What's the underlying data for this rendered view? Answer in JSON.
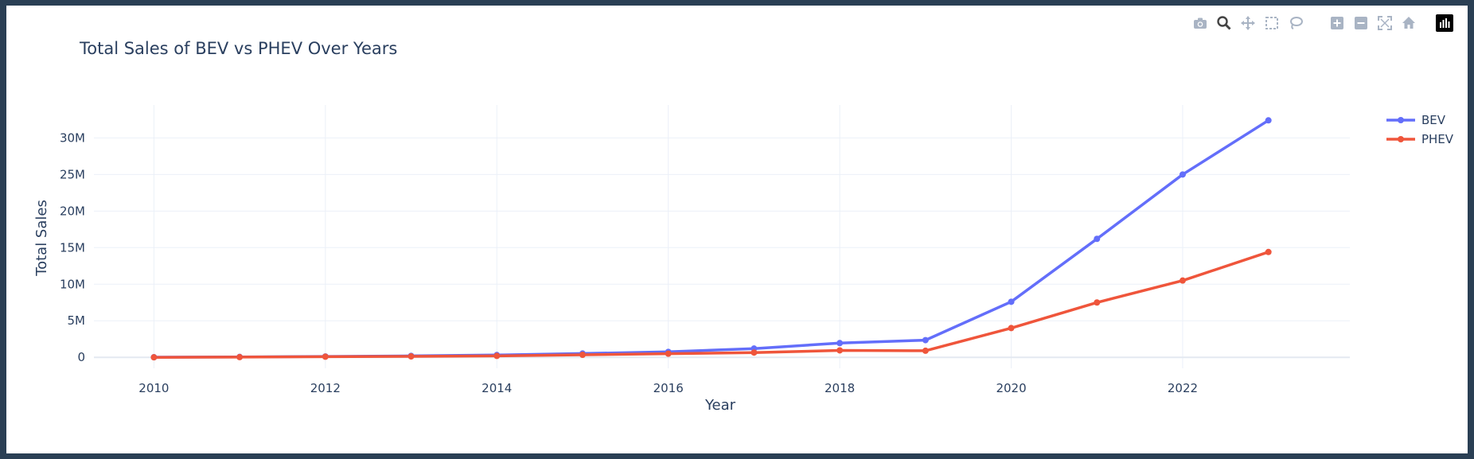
{
  "chart_data": {
    "type": "line",
    "title": "Total Sales of BEV vs PHEV Over Years",
    "xlabel": "Year",
    "ylabel": "Total Sales",
    "x": [
      2010,
      2011,
      2012,
      2013,
      2014,
      2015,
      2016,
      2017,
      2018,
      2019,
      2020,
      2021,
      2022,
      2023
    ],
    "xlim": [
      2009.3,
      2023.95
    ],
    "ylim": [
      -1500000,
      34500000
    ],
    "x_ticks": [
      2010,
      2012,
      2014,
      2016,
      2018,
      2020,
      2022
    ],
    "y_ticks": [
      0,
      5000000,
      10000000,
      15000000,
      20000000,
      25000000,
      30000000
    ],
    "y_tick_labels": [
      "0",
      "5M",
      "10M",
      "15M",
      "20M",
      "25M",
      "30M"
    ],
    "grid": true,
    "legend_position": "top-right",
    "series": [
      {
        "name": "BEV",
        "color": "#636efa",
        "values": [
          20000,
          60000,
          120000,
          200000,
          320000,
          520000,
          750000,
          1200000,
          1950000,
          2350000,
          7600000,
          16200000,
          25000000,
          32400000
        ]
      },
      {
        "name": "PHEV",
        "color": "#ef553b",
        "values": [
          5000,
          30000,
          90000,
          130000,
          200000,
          350000,
          500000,
          650000,
          950000,
          900000,
          4000000,
          7500000,
          10500000,
          14400000
        ]
      }
    ]
  },
  "modebar": {
    "buttons": [
      {
        "icon": "camera-icon",
        "tooltip": "Download plot as a png"
      },
      {
        "icon": "zoom-icon",
        "tooltip": "Zoom"
      },
      {
        "icon": "pan-icon",
        "tooltip": "Pan"
      },
      {
        "icon": "box-select-icon",
        "tooltip": "Box Select"
      },
      {
        "icon": "lasso-select-icon",
        "tooltip": "Lasso Select"
      },
      {
        "icon": "zoom-in-icon",
        "tooltip": "Zoom in"
      },
      {
        "icon": "zoom-out-icon",
        "tooltip": "Zoom out"
      },
      {
        "icon": "autoscale-icon",
        "tooltip": "Autoscale"
      },
      {
        "icon": "reset-axes-icon",
        "tooltip": "Reset axes"
      },
      {
        "icon": "plotly-logo-icon",
        "tooltip": "Produced with Plotly"
      }
    ]
  }
}
